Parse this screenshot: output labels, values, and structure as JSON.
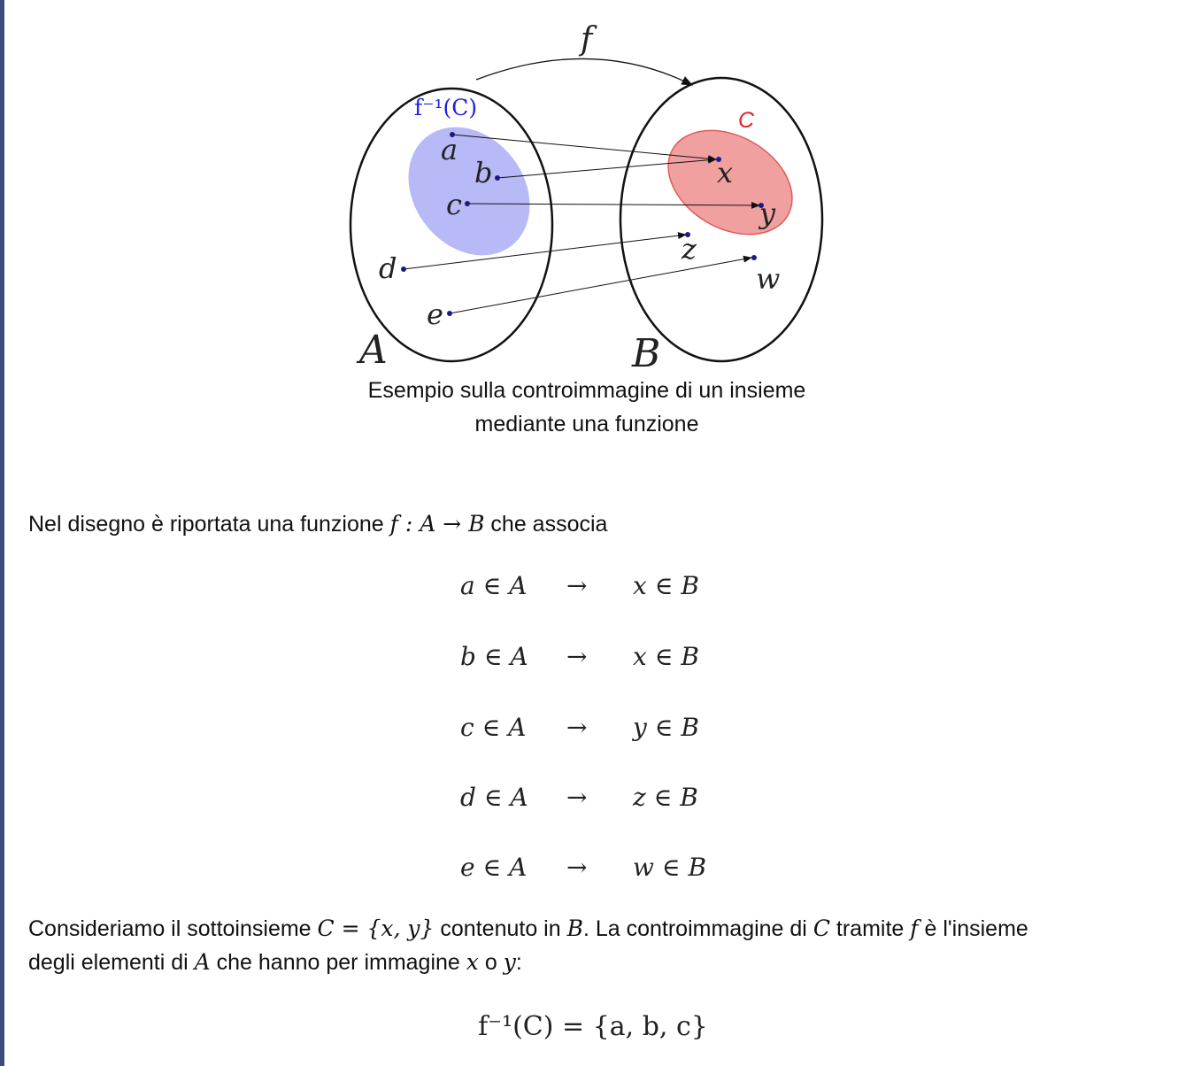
{
  "figure": {
    "label_f": "f",
    "label_preimage": "f⁻¹(C)",
    "label_C": "C",
    "label_A": "A",
    "label_B": "B",
    "domain_points": [
      "a",
      "b",
      "c",
      "d",
      "e"
    ],
    "codomain_points": [
      "x",
      "y",
      "z",
      "w"
    ],
    "colors": {
      "preimage": "#b8b9f7",
      "subset_fill": "#f1a0a0",
      "subset_stroke": "#e05a5a",
      "label_blue": "#2020e0",
      "label_red": "#e02020",
      "point": "#1a1a8a"
    }
  },
  "caption": "Esempio sulla controimmagine di un insieme mediante una funzione",
  "intro": {
    "text_before": "Nel disegno è riportata una funzione",
    "formula": "f : A → B",
    "text_after": "che associa"
  },
  "mappings": [
    {
      "lhs": "a ∈ A",
      "arrow": "→",
      "rhs": "x ∈ B"
    },
    {
      "lhs": "b ∈ A",
      "arrow": "→",
      "rhs": "x ∈ B"
    },
    {
      "lhs": "c ∈ A",
      "arrow": "→",
      "rhs": "y ∈ B"
    },
    {
      "lhs": "d ∈ A",
      "arrow": "→",
      "rhs": "z ∈ B"
    },
    {
      "lhs": "e ∈ A",
      "arrow": "→",
      "rhs": "w ∈ B"
    }
  ],
  "paragraph2": {
    "t1": "Consideriamo il sottoinsieme",
    "m1": "C = {x, y}",
    "t2": "contenuto in",
    "m2": "B",
    "t3": ". La controimmagine di",
    "m3": "C",
    "t4": "tramite",
    "m4": "f",
    "t5": "è l'insieme",
    "t6": "degli elementi di",
    "m5": "A",
    "t7": "che hanno per immagine",
    "m6": "x",
    "t8": "o",
    "m7": "y",
    "t9": ":"
  },
  "equation": "f⁻¹(C) = {a, b, c}"
}
